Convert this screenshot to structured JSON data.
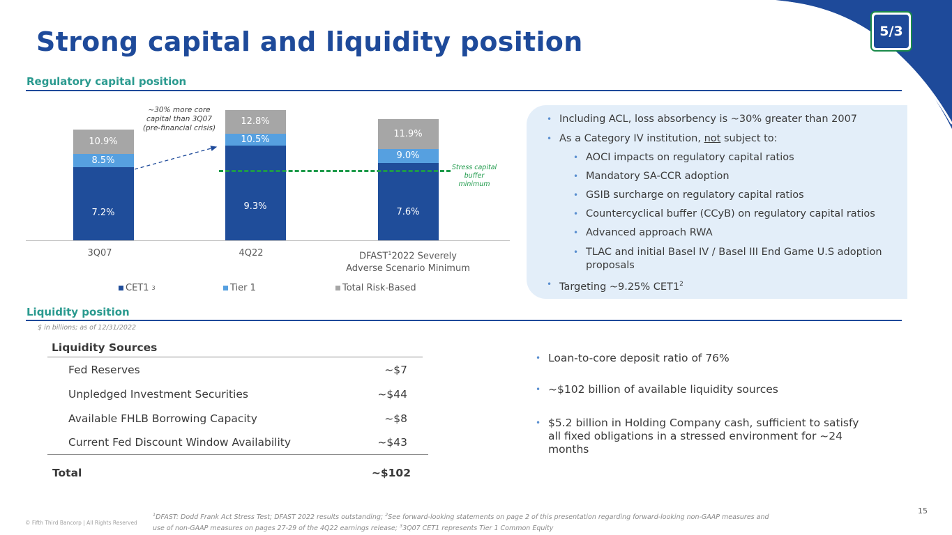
{
  "title": "Strong capital and liquidity position",
  "page_number": "15",
  "copyright": "© Fifth Third Bancorp | All Rights Reserved",
  "logo_text": "5/3",
  "colors": {
    "brand_blue": "#1e4a9a",
    "teal": "#2a9a8f",
    "cet1": "#1f4d9a",
    "tier1": "#56a0e0",
    "total": "#a6a6a6",
    "buffer_line": "#1e9a4a"
  },
  "regulatory": {
    "section_title": "Regulatory capital position",
    "annotation_more_capital": "~30% more core capital than 3Q07 (pre-financial crisis)",
    "annotation_buffer": "Stress capital buffer minimum",
    "tick_4q22": "4Q22",
    "tick_3q07": "3Q07",
    "tick_dfast_prefix": "DFAST",
    "tick_dfast_sup": "1",
    "tick_dfast_rest": "2022 Severely",
    "tick_dfast_line2": "Adverse Scenario Minimum",
    "legend_cet1": "CET1",
    "legend_cet1_sup": "3",
    "legend_tier1": "Tier 1",
    "legend_total": "Total Risk-Based"
  },
  "chart_data": {
    "type": "bar",
    "stacked": true,
    "categories": [
      "3Q07",
      "4Q22",
      "DFAST 2022 Severely Adverse Scenario Minimum"
    ],
    "series": [
      {
        "name": "CET1",
        "values": [
          7.2,
          9.3,
          7.6
        ],
        "labels": [
          "7.2%",
          "9.3%",
          "7.6%"
        ]
      },
      {
        "name": "Tier 1",
        "values": [
          8.5,
          10.5,
          9.0
        ],
        "labels": [
          "8.5%",
          "10.5%",
          "9.0%"
        ]
      },
      {
        "name": "Total Risk-Based",
        "values": [
          10.9,
          12.8,
          11.9
        ],
        "labels": [
          "10.9%",
          "12.8%",
          "11.9%"
        ]
      }
    ],
    "reference_line": {
      "label": "Stress capital buffer minimum"
    },
    "legend": "bottom"
  },
  "capital_bullets": {
    "b1": "Including ACL, loss absorbency is ~30% greater than 2007",
    "b2_pre": "As a Category IV institution, ",
    "b2_not": "not",
    "b2_post": " subject to:",
    "sub1": "AOCI impacts on regulatory capital ratios",
    "sub2": "Mandatory SA-CCR adoption",
    "sub3": "GSIB surcharge on regulatory capital ratios",
    "sub4": "Countercyclical buffer (CCyB) on regulatory capital ratios",
    "sub5": "Advanced approach RWA",
    "sub6_line1": "TLAC and initial Basel IV / Basel III End Game U.S adoption",
    "sub6_line2": "proposals",
    "b3": "Targeting ~9.25% CET1",
    "b3_sup": "2"
  },
  "liquidity": {
    "section_title": "Liquidity position",
    "note": "$ in billions; as of 12/31/2022",
    "table_title": "Liquidity Sources",
    "rows": [
      {
        "label": "Fed Reserves",
        "value": "~$7"
      },
      {
        "label": "Unpledged Investment Securities",
        "value": "~$44"
      },
      {
        "label": "Available FHLB Borrowing Capacity",
        "value": "~$8"
      },
      {
        "label": "Current Fed Discount Window Availability",
        "value": "~$43"
      }
    ],
    "total_label": "Total",
    "total_value": "~$102",
    "bullets": {
      "b1": "Loan-to-core deposit ratio of 76%",
      "b2": "~$102 billion of available liquidity sources",
      "b3_line1": "$5.2 billion in Holding Company cash, sufficient to satisfy",
      "b3_line2": "all fixed obligations in a stressed environment for ~24",
      "b3_line3": "months"
    }
  },
  "footnotes": {
    "sup1": "1",
    "line1a": "DFAST: Dodd Frank Act Stress Test; DFAST 2022 results outstanding; ",
    "sup2": "2",
    "line1b": "See forward-looking statements on page 2 of this presentation regarding forward-looking non-GAAP measures and",
    "line2a": "use of non-GAAP measures on pages 27-29 of the 4Q22 earnings release; ",
    "sup3": "3",
    "line2b": "3Q07 CET1 represents Tier 1 Common Equity"
  }
}
